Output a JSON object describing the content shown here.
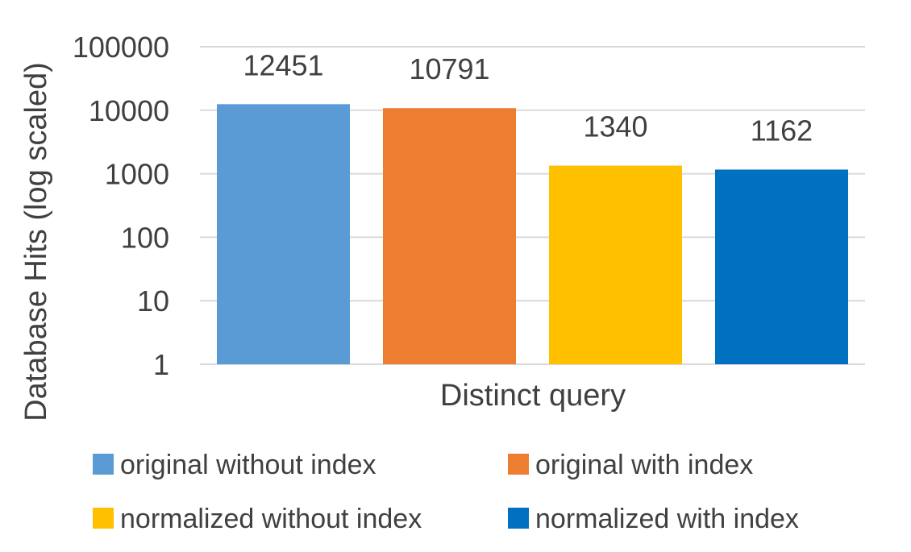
{
  "chart_data": {
    "type": "bar",
    "title": "",
    "xlabel": "Distinct query",
    "ylabel": "Database Hits (log scaled)",
    "y_scale": "log",
    "ylim": [
      1,
      100000
    ],
    "y_ticks": [
      "1",
      "10",
      "100",
      "1000",
      "10000",
      "100000"
    ],
    "grid": true,
    "legend_position": "bottom",
    "categories": [
      "Distinct query"
    ],
    "series": [
      {
        "name": "original without index",
        "values": [
          12451
        ],
        "label": "12451",
        "color": "#5B9BD5"
      },
      {
        "name": "original with index",
        "values": [
          10791
        ],
        "label": "10791",
        "color": "#ED7D31"
      },
      {
        "name": "normalized without index",
        "values": [
          1340
        ],
        "label": "1340",
        "color": "#FFC000"
      },
      {
        "name": "normalized with index",
        "values": [
          1162
        ],
        "label": "1162",
        "color": "#0070C0"
      }
    ]
  }
}
